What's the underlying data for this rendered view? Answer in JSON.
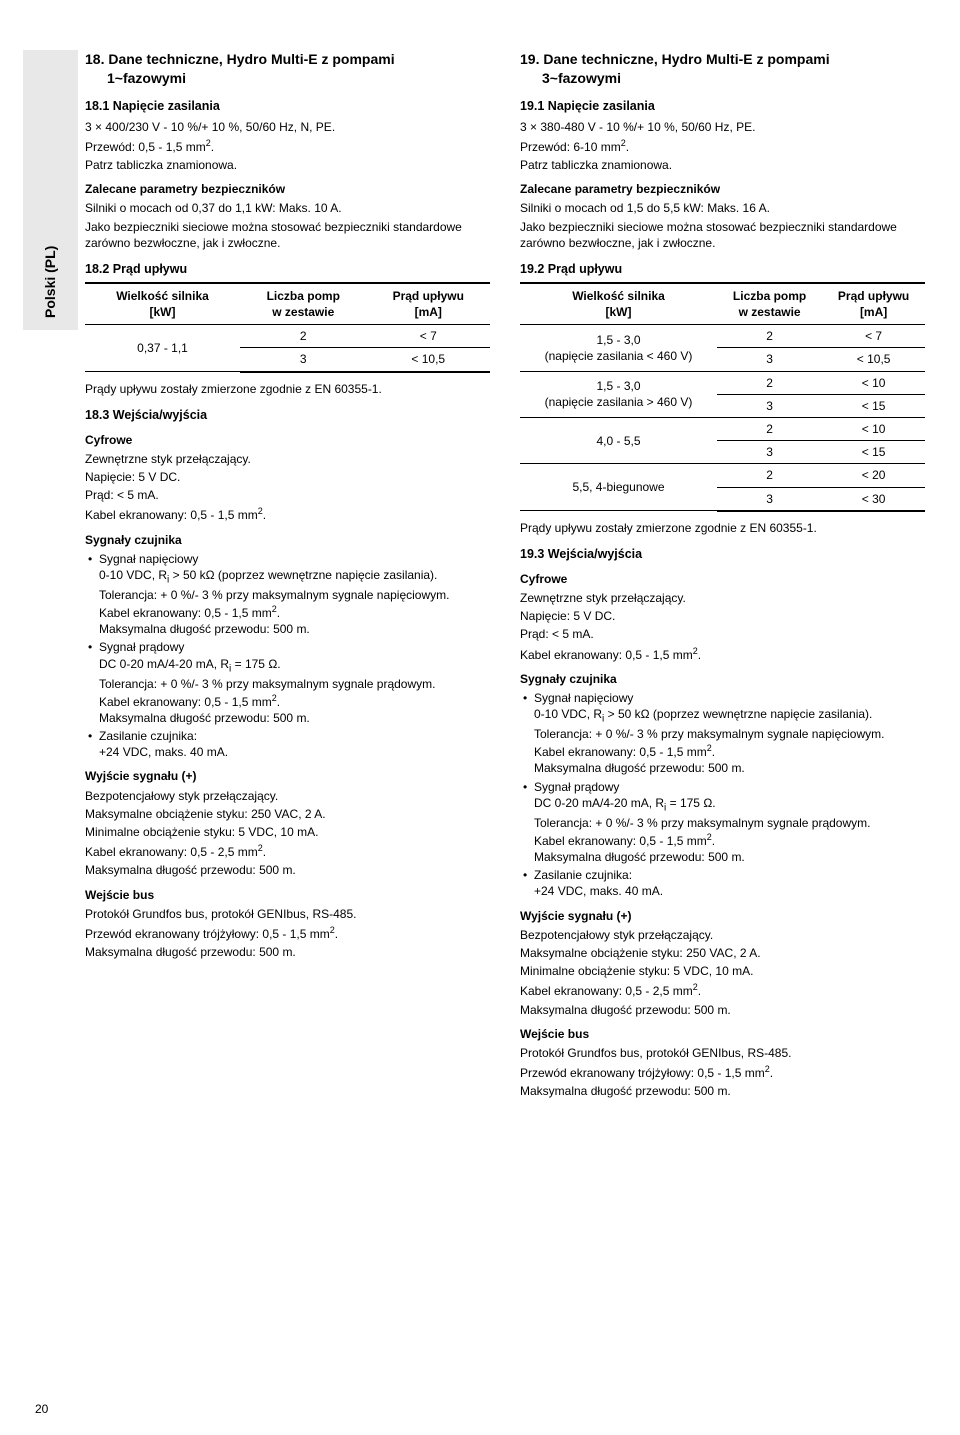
{
  "side_label": "Polski (PL)",
  "page_number": "20",
  "left": {
    "h2_a": "18. Dane techniczne, Hydro Multi-E z pompami",
    "h2_b": "1~fazowymi",
    "s181_h": "18.1 Napięcie zasilania",
    "s181_l1": "3 × 400/230 V - 10 %/+ 10 %, 50/60 Hz, N, PE.",
    "s181_l2": "Przewód: 0,5 - 1,5 mm",
    "s181_l3": "Patrz tabliczka znamionowa.",
    "z_h": "Zalecane parametry bezpieczników",
    "z_l1": "Silniki o mocach od 0,37 do 1,1 kW: Maks. 10 A.",
    "z_l2": "Jako bezpieczniki sieciowe można stosować bezpieczniki standardowe zarówno bezwłoczne, jak i zwłoczne.",
    "s182_h": "18.2 Prąd upływu",
    "table": {
      "col1a": "Wielkość silnika",
      "col1b": "[kW]",
      "col2a": "Liczba pomp",
      "col2b": "w zestawie",
      "col3a": "Prąd upływu",
      "col3b": "[mA]",
      "r1c1": "0,37 - 1,1",
      "r1c2": "2",
      "r1c3": "< 7",
      "r2c2": "3",
      "r2c3": "< 10,5"
    },
    "after_tbl": "Prądy upływu zostały zmierzone zgodnie z EN 60355-1.",
    "s183_h": "18.3 Wejścia/wyjścia",
    "cyf_h": "Cyfrowe",
    "cyf_l1": "Zewnętrzne styk przełączający.",
    "cyf_l2": "Napięcie: 5 V DC.",
    "cyf_l3": "Prąd: < 5 mA.",
    "cyf_l4": "Kabel ekranowany: 0,5 - 1,5 mm",
    "sig_h": "Sygnały czujnika",
    "li1a": "Sygnał napięciowy",
    "li1b": "0-10 VDC, R",
    "li1b2": " > 50 kΩ (poprzez wewnętrzne napięcie zasilania).",
    "li1c": "Tolerancja: + 0 %/- 3 % przy maksymalnym sygnale napięciowym.",
    "li1d": "Kabel ekranowany: 0,5 - 1,5 mm",
    "li1e": "Maksymalna długość przewodu: 500 m.",
    "li2a": "Sygnał prądowy",
    "li2b": "DC 0-20 mA/4-20 mA, R",
    "li2b2": " = 175 Ω.",
    "li2c": "Tolerancja: + 0 %/- 3 % przy maksymalnym sygnale prądowym.",
    "li2d": "Kabel ekranowany: 0,5 - 1,5 mm",
    "li2e": "Maksymalna długość przewodu: 500 m.",
    "li3a": "Zasilanie czujnika:",
    "li3b": "+24 VDC, maks. 40 mA.",
    "wys_h": "Wyjście sygnału (+)",
    "wys_l1": "Bezpotencjałowy styk przełączający.",
    "wys_l2": "Maksymalne obciążenie styku: 250 VAC, 2 A.",
    "wys_l3": "Minimalne obciążenie styku: 5 VDC, 10 mA.",
    "wys_l4": "Kabel ekranowany: 0,5 - 2,5 mm",
    "wys_l5": "Maksymalna długość przewodu: 500 m.",
    "wb_h": "Wejście bus",
    "wb_l1": "Protokół Grundfos bus, protokół GENIbus, RS-485.",
    "wb_l2": "Przewód ekranowany trójżyłowy: 0,5 - 1,5 mm",
    "wb_l3": "Maksymalna długość przewodu: 500 m."
  },
  "right": {
    "h2_a": "19. Dane techniczne, Hydro Multi-E z pompami",
    "h2_b": "3~fazowymi",
    "s191_h": "19.1 Napięcie zasilania",
    "s191_l1": "3 × 380-480 V - 10 %/+ 10 %, 50/60 Hz, PE.",
    "s191_l2": "Przewód: 6-10 mm",
    "s191_l3": "Patrz tabliczka znamionowa.",
    "z_h": "Zalecane parametry bezpieczników",
    "z_l1": "Silniki o mocach od 1,5 do 5,5 kW: Maks. 16 A.",
    "z_l2": "Jako bezpieczniki sieciowe można stosować bezpieczniki standardowe zarówno bezwłoczne, jak i zwłoczne.",
    "s192_h": "19.2 Prąd upływu",
    "table": {
      "col1a": "Wielkość silnika",
      "col1b": "[kW]",
      "col2a": "Liczba pomp",
      "col2b": "w zestawie",
      "col3a": "Prąd upływu",
      "col3b": "[mA]",
      "r1c1a": "1,5 - 3,0",
      "r1c1b": "(napięcie zasilania < 460 V)",
      "r1c2": "2",
      "r1c3": "< 7",
      "r2c2": "3",
      "r2c3": "< 10,5",
      "r3c1a": "1,5 - 3,0",
      "r3c1b": "(napięcie zasilania > 460 V)",
      "r3c2": "2",
      "r3c3": "< 10",
      "r4c2": "3",
      "r4c3": "< 15",
      "r5c1": "4,0 - 5,5",
      "r5c2": "2",
      "r5c3": "< 10",
      "r6c2": "3",
      "r6c3": "< 15",
      "r7c1": "5,5, 4-biegunowe",
      "r7c2": "2",
      "r7c3": "< 20",
      "r8c2": "3",
      "r8c3": "< 30"
    },
    "after_tbl": "Prądy upływu zostały zmierzone zgodnie z EN 60355-1.",
    "s193_h": "19.3 Wejścia/wyjścia",
    "cyf_h": "Cyfrowe",
    "cyf_l1": "Zewnętrzne styk przełączający.",
    "cyf_l2": "Napięcie: 5 V DC.",
    "cyf_l3": "Prąd: < 5 mA.",
    "cyf_l4": "Kabel ekranowany: 0,5 - 1,5 mm",
    "sig_h": "Sygnały czujnika",
    "li1a": "Sygnał napięciowy",
    "li1b": "0-10 VDC, R",
    "li1b2": " > 50 kΩ (poprzez wewnętrzne napięcie zasilania).",
    "li1c": "Tolerancja: + 0 %/- 3 % przy maksymalnym sygnale napięciowym.",
    "li1d": "Kabel ekranowany: 0,5 - 1,5 mm",
    "li1e": "Maksymalna długość przewodu: 500 m.",
    "li2a": "Sygnał prądowy",
    "li2b": "DC 0-20 mA/4-20 mA, R",
    "li2b2": " = 175 Ω.",
    "li2c": "Tolerancja: + 0 %/- 3 % przy maksymalnym sygnale prądowym.",
    "li2d": "Kabel ekranowany: 0,5 - 1,5 mm",
    "li2e": "Maksymalna długość przewodu: 500 m.",
    "li3a": "Zasilanie czujnika:",
    "li3b": "+24 VDC, maks. 40 mA.",
    "wys_h": "Wyjście sygnału (+)",
    "wys_l1": "Bezpotencjałowy styk przełączający.",
    "wys_l2": "Maksymalne obciążenie styku: 250 VAC, 2 A.",
    "wys_l3": "Minimalne obciążenie styku: 5 VDC, 10 mA.",
    "wys_l4": "Kabel ekranowany: 0,5 - 2,5 mm",
    "wys_l5": "Maksymalna długość przewodu: 500 m.",
    "wb_h": "Wejście bus",
    "wb_l1": "Protokół Grundfos bus, protokół GENIbus, RS-485.",
    "wb_l2": "Przewód ekranowany trójżyłowy: 0,5 - 1,5 mm",
    "wb_l3": "Maksymalna długość przewodu: 500 m."
  }
}
